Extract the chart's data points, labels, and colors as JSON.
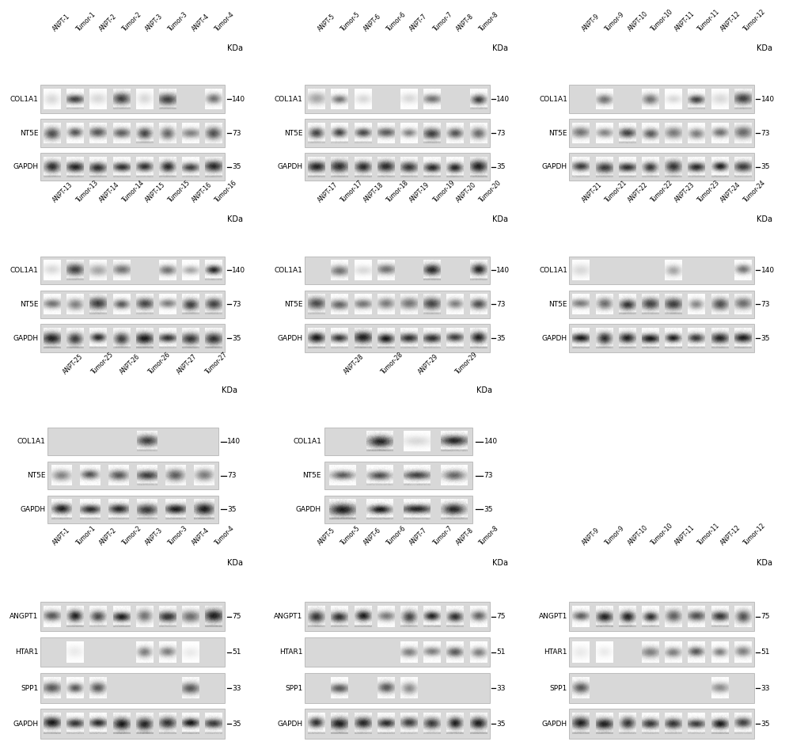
{
  "background_color": "#ffffff",
  "panels": [
    {
      "row": 0,
      "col": 0,
      "samples": [
        "ANPT-1",
        "Tumor-1",
        "ANPT-2",
        "Tumor-2",
        "ANPT-3",
        "Tumor-3",
        "ANPT-4",
        "Tumor-4"
      ],
      "markers": [
        "COL1A1",
        "NT5E",
        "GAPDH"
      ],
      "kda": [
        "140",
        "73",
        "35"
      ]
    },
    {
      "row": 0,
      "col": 1,
      "samples": [
        "ANPT-5",
        "Tumor-5",
        "ANPT-6",
        "Tumor-6",
        "ANPT-7",
        "Tumor-7",
        "ANPT-8",
        "Tumor-8"
      ],
      "markers": [
        "COL1A1",
        "NT5E",
        "GAPDH"
      ],
      "kda": [
        "140",
        "73",
        "35"
      ]
    },
    {
      "row": 0,
      "col": 2,
      "samples": [
        "ANPT-9",
        "Tumor-9",
        "ANPT-10",
        "Tumor-10",
        "ANPT-11",
        "Tumor-11",
        "ANPT-12",
        "Tumor-12"
      ],
      "markers": [
        "COL1A1",
        "NT5E",
        "GAPDH"
      ],
      "kda": [
        "140",
        "73",
        "35"
      ]
    },
    {
      "row": 1,
      "col": 0,
      "samples": [
        "ANPT-13",
        "Tumor-13",
        "ANPT-14",
        "Tumor-14",
        "ANPT-15",
        "Tumor-15",
        "ANPT-16",
        "Tumor-16"
      ],
      "markers": [
        "COL1A1",
        "NT5E",
        "GAPDH"
      ],
      "kda": [
        "140",
        "73",
        "35"
      ]
    },
    {
      "row": 1,
      "col": 1,
      "samples": [
        "ANPT-17",
        "Tumor-17",
        "ANPT-18",
        "Tumor-18",
        "ANPT-19",
        "Tumor-19",
        "ANPT-20",
        "Tumor-20"
      ],
      "markers": [
        "COL1A1",
        "NT5E",
        "GAPDH"
      ],
      "kda": [
        "140",
        "73",
        "35"
      ]
    },
    {
      "row": 1,
      "col": 2,
      "samples": [
        "ANPT-21",
        "Tumor-21",
        "ANPT-22",
        "Tumor-22",
        "ANPT-23",
        "Tumor-23",
        "ANPT-24",
        "Tumor-24"
      ],
      "markers": [
        "COL1A1",
        "NT5E",
        "GAPDH"
      ],
      "kda": [
        "140",
        "73",
        "35"
      ]
    },
    {
      "row": 2,
      "col": 0,
      "samples": [
        "ANPT-25",
        "Tumor-25",
        "ANPT-26",
        "Tumor-26",
        "ANPT-27",
        "Tumor-27"
      ],
      "markers": [
        "COL1A1",
        "NT5E",
        "GAPDH"
      ],
      "kda": [
        "140",
        "73",
        "35"
      ]
    },
    {
      "row": 2,
      "col": 1,
      "samples": [
        "ANPT-28",
        "Tumor-28",
        "ANPT-29",
        "Tumor-29"
      ],
      "markers": [
        "COL1A1",
        "NT5E",
        "GAPDH"
      ],
      "kda": [
        "140",
        "73",
        "35"
      ]
    },
    {
      "row": 3,
      "col": 0,
      "samples": [
        "ANPT-1",
        "Tumor-1",
        "ANPT-2",
        "Tumor-2",
        "ANPT-3",
        "Tumor-3",
        "ANPT-4",
        "Tumor-4"
      ],
      "markers": [
        "ANGPT1",
        "HTAR1",
        "SPP1",
        "GAPDH"
      ],
      "kda": [
        "75",
        "51",
        "33",
        "35"
      ]
    },
    {
      "row": 3,
      "col": 1,
      "samples": [
        "ANPT-5",
        "Tumor-5",
        "ANPT-6",
        "Tumor-6",
        "ANPT-7",
        "Tumor-7",
        "ANPT-8",
        "Tumor-8"
      ],
      "markers": [
        "ANGPT1",
        "HTAR1",
        "SPP1",
        "GAPDH"
      ],
      "kda": [
        "75",
        "51",
        "33",
        "35"
      ]
    },
    {
      "row": 3,
      "col": 2,
      "samples": [
        "ANPT-9",
        "Tumor-9",
        "ANPT-10",
        "Tumor-10",
        "ANPT-11",
        "Tumor-11",
        "ANPT-12",
        "Tumor-12"
      ],
      "markers": [
        "ANGPT1",
        "HTAR1",
        "SPP1",
        "GAPDH"
      ],
      "kda": [
        "75",
        "51",
        "33",
        "35"
      ]
    }
  ],
  "blot_bg": "#d8d8d8",
  "label_fs": 6.5,
  "kda_fs": 7.0,
  "sample_fs": 5.5
}
